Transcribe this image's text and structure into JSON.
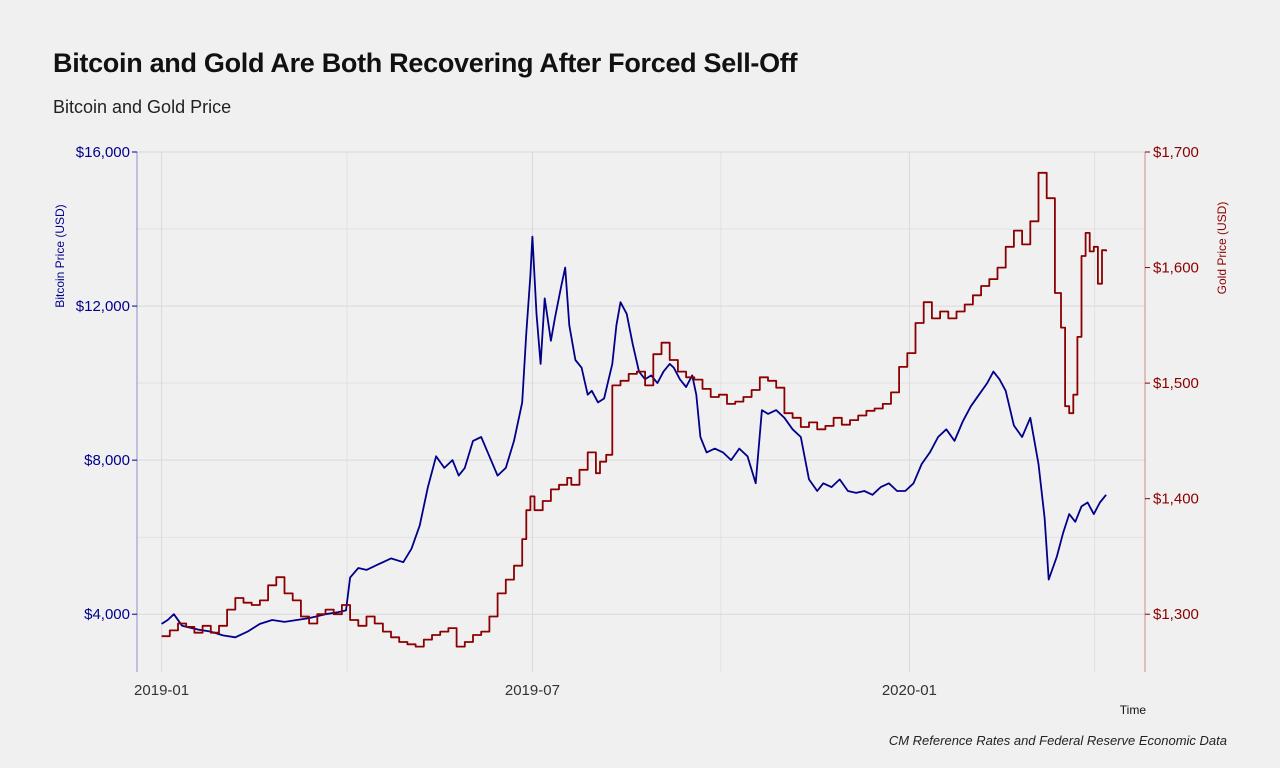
{
  "title": "Bitcoin and Gold Are Both Recovering After Forced Sell-Off",
  "subtitle": "Bitcoin and Gold Price",
  "caption": "CM Reference Rates and Federal Reserve Economic Data",
  "colors": {
    "background": "#f0f0f0",
    "grid": "#d9d9d9",
    "bitcoin": "#00008b",
    "gold": "#8b0000",
    "text": "#111111"
  },
  "chart_data": {
    "type": "line",
    "title": "Bitcoin and Gold Are Both Recovering After Forced Sell-Off",
    "subtitle": "Bitcoin and Gold Price",
    "xlabel": "Time",
    "x_domain": [
      "2019-01-01",
      "2020-04-16"
    ],
    "x_range_days": [
      -12,
      480
    ],
    "x_ticks": [
      {
        "label": "2019-01",
        "day": 0
      },
      {
        "label": "2019-07",
        "day": 181
      },
      {
        "label": "2020-01",
        "day": 365
      }
    ],
    "y_left": {
      "label": "Bitcoin Price (USD)",
      "lim": [
        2500,
        16000
      ],
      "ticks": [
        4000,
        8000,
        12000,
        16000
      ],
      "tick_labels": [
        "$4,000",
        "$8,000",
        "$12,000",
        "$16,000"
      ]
    },
    "y_right": {
      "label": "Gold Price (USD)",
      "lim": [
        1250,
        1700
      ],
      "ticks": [
        1300,
        1400,
        1500,
        1600,
        1700
      ],
      "tick_labels": [
        "$1,300",
        "$1,400",
        "$1,500",
        "$1,600",
        "$1,700"
      ]
    },
    "grid": true,
    "legend": "none",
    "series": [
      {
        "name": "Bitcoin",
        "axis": "left",
        "color": "#00008b",
        "points": [
          [
            0,
            3750
          ],
          [
            3,
            3850
          ],
          [
            6,
            4000
          ],
          [
            10,
            3700
          ],
          [
            14,
            3650
          ],
          [
            18,
            3600
          ],
          [
            24,
            3550
          ],
          [
            30,
            3450
          ],
          [
            36,
            3400
          ],
          [
            42,
            3550
          ],
          [
            48,
            3750
          ],
          [
            54,
            3850
          ],
          [
            60,
            3800
          ],
          [
            66,
            3850
          ],
          [
            72,
            3900
          ],
          [
            80,
            4000
          ],
          [
            86,
            4050
          ],
          [
            90,
            4100
          ],
          [
            92,
            4950
          ],
          [
            96,
            5200
          ],
          [
            100,
            5150
          ],
          [
            106,
            5300
          ],
          [
            112,
            5450
          ],
          [
            118,
            5350
          ],
          [
            122,
            5700
          ],
          [
            126,
            6300
          ],
          [
            130,
            7300
          ],
          [
            134,
            8100
          ],
          [
            138,
            7800
          ],
          [
            142,
            8000
          ],
          [
            145,
            7600
          ],
          [
            148,
            7800
          ],
          [
            152,
            8500
          ],
          [
            156,
            8600
          ],
          [
            160,
            8100
          ],
          [
            164,
            7600
          ],
          [
            168,
            7800
          ],
          [
            172,
            8500
          ],
          [
            176,
            9500
          ],
          [
            178,
            11300
          ],
          [
            180,
            12800
          ],
          [
            181,
            13800
          ],
          [
            183,
            11800
          ],
          [
            185,
            10500
          ],
          [
            187,
            12200
          ],
          [
            190,
            11100
          ],
          [
            192,
            11700
          ],
          [
            195,
            12500
          ],
          [
            197,
            13000
          ],
          [
            199,
            11500
          ],
          [
            202,
            10600
          ],
          [
            205,
            10400
          ],
          [
            208,
            9700
          ],
          [
            210,
            9800
          ],
          [
            213,
            9500
          ],
          [
            216,
            9600
          ],
          [
            220,
            10500
          ],
          [
            222,
            11500
          ],
          [
            224,
            12100
          ],
          [
            227,
            11800
          ],
          [
            230,
            11000
          ],
          [
            233,
            10300
          ],
          [
            236,
            10100
          ],
          [
            239,
            10200
          ],
          [
            242,
            10000
          ],
          [
            245,
            10300
          ],
          [
            248,
            10500
          ],
          [
            250,
            10400
          ],
          [
            253,
            10100
          ],
          [
            256,
            9900
          ],
          [
            259,
            10200
          ],
          [
            261,
            9700
          ],
          [
            263,
            8600
          ],
          [
            266,
            8200
          ],
          [
            270,
            8300
          ],
          [
            274,
            8200
          ],
          [
            278,
            8000
          ],
          [
            282,
            8300
          ],
          [
            286,
            8100
          ],
          [
            290,
            7400
          ],
          [
            293,
            9300
          ],
          [
            296,
            9200
          ],
          [
            300,
            9300
          ],
          [
            304,
            9100
          ],
          [
            308,
            8800
          ],
          [
            312,
            8600
          ],
          [
            316,
            7500
          ],
          [
            320,
            7200
          ],
          [
            323,
            7400
          ],
          [
            327,
            7300
          ],
          [
            331,
            7500
          ],
          [
            335,
            7200
          ],
          [
            339,
            7150
          ],
          [
            343,
            7200
          ],
          [
            347,
            7100
          ],
          [
            351,
            7300
          ],
          [
            355,
            7400
          ],
          [
            359,
            7200
          ],
          [
            363,
            7200
          ],
          [
            367,
            7400
          ],
          [
            371,
            7900
          ],
          [
            375,
            8200
          ],
          [
            379,
            8600
          ],
          [
            383,
            8800
          ],
          [
            387,
            8500
          ],
          [
            391,
            9000
          ],
          [
            395,
            9400
          ],
          [
            399,
            9700
          ],
          [
            403,
            10000
          ],
          [
            406,
            10300
          ],
          [
            409,
            10100
          ],
          [
            412,
            9800
          ],
          [
            416,
            8900
          ],
          [
            420,
            8600
          ],
          [
            424,
            9100
          ],
          [
            428,
            7900
          ],
          [
            431,
            6500
          ],
          [
            433,
            4900
          ],
          [
            435,
            5200
          ],
          [
            437,
            5500
          ],
          [
            440,
            6100
          ],
          [
            443,
            6600
          ],
          [
            446,
            6400
          ],
          [
            449,
            6800
          ],
          [
            452,
            6900
          ],
          [
            455,
            6600
          ],
          [
            458,
            6900
          ],
          [
            461,
            7100
          ]
        ]
      },
      {
        "name": "Gold",
        "axis": "right",
        "color": "#8b0000",
        "points": [
          [
            0,
            1281
          ],
          [
            4,
            1286
          ],
          [
            8,
            1292
          ],
          [
            12,
            1289
          ],
          [
            16,
            1284
          ],
          [
            20,
            1290
          ],
          [
            24,
            1284
          ],
          [
            28,
            1290
          ],
          [
            32,
            1304
          ],
          [
            36,
            1314
          ],
          [
            40,
            1310
          ],
          [
            44,
            1308
          ],
          [
            48,
            1312
          ],
          [
            52,
            1325
          ],
          [
            56,
            1332
          ],
          [
            60,
            1318
          ],
          [
            64,
            1312
          ],
          [
            68,
            1298
          ],
          [
            72,
            1292
          ],
          [
            76,
            1300
          ],
          [
            80,
            1304
          ],
          [
            84,
            1300
          ],
          [
            88,
            1308
          ],
          [
            92,
            1295
          ],
          [
            96,
            1290
          ],
          [
            100,
            1298
          ],
          [
            104,
            1292
          ],
          [
            108,
            1285
          ],
          [
            112,
            1280
          ],
          [
            116,
            1276
          ],
          [
            120,
            1274
          ],
          [
            124,
            1272
          ],
          [
            128,
            1278
          ],
          [
            132,
            1282
          ],
          [
            136,
            1285
          ],
          [
            140,
            1288
          ],
          [
            144,
            1272
          ],
          [
            148,
            1276
          ],
          [
            152,
            1282
          ],
          [
            156,
            1285
          ],
          [
            160,
            1298
          ],
          [
            164,
            1318
          ],
          [
            168,
            1330
          ],
          [
            172,
            1342
          ],
          [
            176,
            1365
          ],
          [
            178,
            1390
          ],
          [
            180,
            1402
          ],
          [
            182,
            1390
          ],
          [
            186,
            1398
          ],
          [
            190,
            1408
          ],
          [
            194,
            1412
          ],
          [
            198,
            1418
          ],
          [
            200,
            1412
          ],
          [
            204,
            1425
          ],
          [
            208,
            1440
          ],
          [
            212,
            1422
          ],
          [
            214,
            1432
          ],
          [
            217,
            1438
          ],
          [
            220,
            1498
          ],
          [
            224,
            1502
          ],
          [
            228,
            1508
          ],
          [
            232,
            1510
          ],
          [
            236,
            1498
          ],
          [
            240,
            1525
          ],
          [
            244,
            1535
          ],
          [
            248,
            1520
          ],
          [
            252,
            1510
          ],
          [
            256,
            1505
          ],
          [
            260,
            1503
          ],
          [
            264,
            1495
          ],
          [
            268,
            1488
          ],
          [
            272,
            1490
          ],
          [
            276,
            1482
          ],
          [
            280,
            1484
          ],
          [
            284,
            1488
          ],
          [
            288,
            1494
          ],
          [
            292,
            1505
          ],
          [
            296,
            1502
          ],
          [
            300,
            1496
          ],
          [
            304,
            1474
          ],
          [
            308,
            1470
          ],
          [
            312,
            1462
          ],
          [
            316,
            1466
          ],
          [
            320,
            1460
          ],
          [
            324,
            1463
          ],
          [
            328,
            1470
          ],
          [
            332,
            1464
          ],
          [
            336,
            1468
          ],
          [
            340,
            1472
          ],
          [
            344,
            1476
          ],
          [
            348,
            1478
          ],
          [
            352,
            1482
          ],
          [
            356,
            1492
          ],
          [
            360,
            1514
          ],
          [
            364,
            1526
          ],
          [
            368,
            1552
          ],
          [
            372,
            1570
          ],
          [
            376,
            1556
          ],
          [
            380,
            1562
          ],
          [
            384,
            1556
          ],
          [
            388,
            1562
          ],
          [
            392,
            1568
          ],
          [
            396,
            1576
          ],
          [
            400,
            1584
          ],
          [
            404,
            1590
          ],
          [
            408,
            1600
          ],
          [
            412,
            1618
          ],
          [
            416,
            1632
          ],
          [
            420,
            1620
          ],
          [
            424,
            1640
          ],
          [
            428,
            1682
          ],
          [
            432,
            1660
          ],
          [
            436,
            1578
          ],
          [
            439,
            1548
          ],
          [
            441,
            1480
          ],
          [
            443,
            1474
          ],
          [
            445,
            1490
          ],
          [
            447,
            1540
          ],
          [
            449,
            1610
          ],
          [
            451,
            1630
          ],
          [
            453,
            1614
          ],
          [
            455,
            1618
          ],
          [
            457,
            1586
          ],
          [
            459,
            1615
          ],
          [
            461,
            1614
          ]
        ]
      }
    ]
  }
}
